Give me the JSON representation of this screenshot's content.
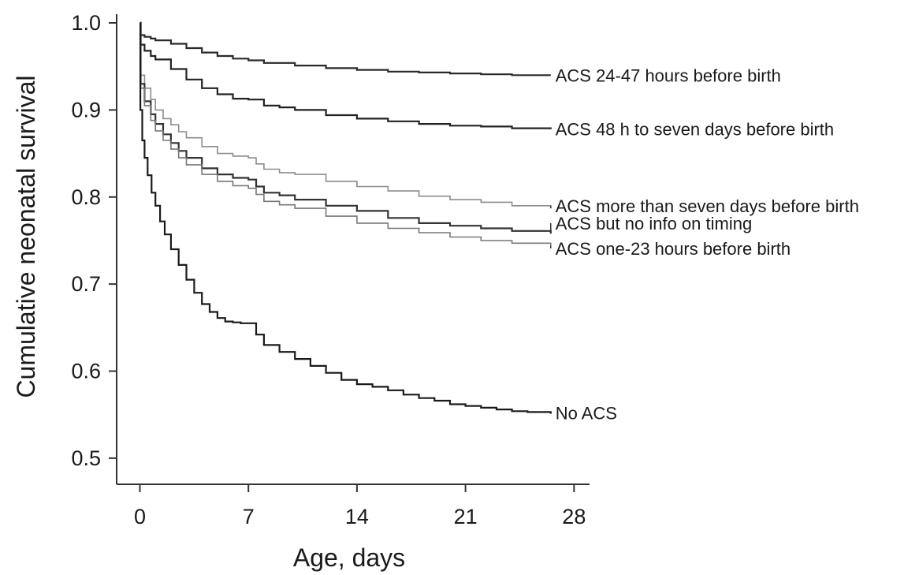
{
  "chart_data": {
    "type": "line",
    "title": "",
    "xlabel": "Age, days",
    "ylabel": "Cumulative neonatal survival",
    "xlim": [
      -1.5,
      29
    ],
    "ylim": [
      0.47,
      1.01
    ],
    "x_ticks": [
      0,
      7,
      14,
      21,
      28
    ],
    "x_tick_labels": [
      "0",
      "7",
      "14",
      "21",
      "28"
    ],
    "y_ticks": [
      0.5,
      0.6,
      0.7,
      0.8,
      0.9,
      1.0
    ],
    "y_tick_labels": [
      "0.5",
      "0.6",
      "0.7",
      "0.8",
      "0.9",
      "1.0"
    ],
    "grid": false,
    "legend": "none",
    "series": [
      {
        "name": "ACS 24-47 hours before birth",
        "color": "#2a2a2a",
        "x": [
          0,
          0.05,
          0.3,
          0.7,
          1,
          2,
          3,
          4,
          5,
          6,
          7,
          8,
          10,
          12,
          14,
          16,
          18,
          20,
          22,
          24,
          26.5
        ],
        "y": [
          1.0,
          0.986,
          0.984,
          0.982,
          0.98,
          0.976,
          0.971,
          0.966,
          0.962,
          0.959,
          0.957,
          0.954,
          0.951,
          0.948,
          0.946,
          0.944,
          0.943,
          0.942,
          0.941,
          0.94,
          0.94
        ]
      },
      {
        "name": "ACS 48 h to seven days before birth",
        "color": "#222222",
        "x": [
          0,
          0.05,
          0.3,
          0.7,
          1,
          2,
          3,
          4,
          5,
          6,
          7,
          8,
          9,
          10,
          12,
          14,
          16,
          18,
          20,
          22,
          24,
          26.5
        ],
        "y": [
          1.0,
          0.975,
          0.968,
          0.962,
          0.958,
          0.947,
          0.935,
          0.925,
          0.918,
          0.913,
          0.912,
          0.905,
          0.903,
          0.9,
          0.894,
          0.89,
          0.887,
          0.884,
          0.882,
          0.881,
          0.879,
          0.878
        ]
      },
      {
        "name": "ACS more than seven days before birth",
        "color": "#8c8c8c",
        "x": [
          0,
          0.05,
          0.3,
          0.7,
          1,
          1.5,
          2,
          2.5,
          3,
          4,
          5,
          6,
          7,
          7.5,
          8,
          9,
          10,
          12,
          14,
          16,
          18,
          20,
          22,
          24,
          26.5
        ],
        "y": [
          1.0,
          0.94,
          0.925,
          0.912,
          0.9,
          0.89,
          0.883,
          0.875,
          0.868,
          0.858,
          0.85,
          0.847,
          0.845,
          0.838,
          0.832,
          0.828,
          0.826,
          0.818,
          0.812,
          0.807,
          0.801,
          0.797,
          0.794,
          0.79,
          0.787
        ]
      },
      {
        "name": "ACS but no info on timing",
        "color": "#333333",
        "x": [
          0,
          0.05,
          0.3,
          0.7,
          1,
          1.5,
          2,
          2.5,
          3,
          4,
          5,
          6,
          7,
          7.5,
          8,
          9,
          10,
          12,
          14,
          16,
          18,
          20,
          22,
          24,
          26.5
        ],
        "y": [
          1.0,
          0.93,
          0.91,
          0.895,
          0.884,
          0.872,
          0.862,
          0.853,
          0.845,
          0.833,
          0.826,
          0.822,
          0.82,
          0.812,
          0.805,
          0.802,
          0.797,
          0.79,
          0.784,
          0.776,
          0.77,
          0.767,
          0.764,
          0.761,
          0.758
        ]
      },
      {
        "name": "ACS one-23 hours before birth",
        "color": "#777777",
        "x": [
          0,
          0.05,
          0.3,
          0.7,
          1,
          1.5,
          2,
          2.5,
          3,
          4,
          5,
          6,
          7,
          7.5,
          8,
          9,
          10,
          12,
          14,
          16,
          18,
          20,
          22,
          24,
          26.5
        ],
        "y": [
          1.0,
          0.925,
          0.905,
          0.888,
          0.876,
          0.865,
          0.855,
          0.845,
          0.837,
          0.826,
          0.818,
          0.813,
          0.81,
          0.803,
          0.795,
          0.791,
          0.787,
          0.778,
          0.77,
          0.764,
          0.759,
          0.754,
          0.75,
          0.747,
          0.744
        ]
      },
      {
        "name": "No ACS",
        "color": "#1a1a1a",
        "x": [
          0,
          0.03,
          0.15,
          0.3,
          0.5,
          0.75,
          1,
          1.3,
          1.6,
          2,
          2.5,
          3,
          3.5,
          4,
          4.5,
          5,
          5.5,
          6,
          6.5,
          7,
          7.5,
          8,
          9,
          10,
          11,
          12,
          13,
          14,
          15,
          16,
          17,
          18,
          19,
          20,
          21,
          22,
          23,
          24,
          25,
          26.5
        ],
        "y": [
          1.0,
          0.9,
          0.865,
          0.845,
          0.825,
          0.805,
          0.79,
          0.772,
          0.757,
          0.74,
          0.722,
          0.705,
          0.69,
          0.677,
          0.668,
          0.661,
          0.657,
          0.656,
          0.655,
          0.655,
          0.642,
          0.63,
          0.622,
          0.614,
          0.606,
          0.598,
          0.59,
          0.585,
          0.582,
          0.578,
          0.573,
          0.569,
          0.566,
          0.562,
          0.56,
          0.558,
          0.556,
          0.554,
          0.553,
          0.551
        ]
      }
    ],
    "line_labels": [
      {
        "text": "ACS 24-47 hours before birth",
        "x": 26.8,
        "y": 0.94
      },
      {
        "text": "ACS 48 h to seven days before birth",
        "x": 26.8,
        "y": 0.878
      },
      {
        "text": "ACS more than seven days before birth",
        "x": 26.8,
        "y": 0.79
      },
      {
        "text": "ACS but no info on timing",
        "x": 26.8,
        "y": 0.77
      },
      {
        "text": "ACS one-23 hours before birth",
        "x": 26.8,
        "y": 0.741
      },
      {
        "text": "No ACS",
        "x": 26.8,
        "y": 0.552
      }
    ]
  }
}
